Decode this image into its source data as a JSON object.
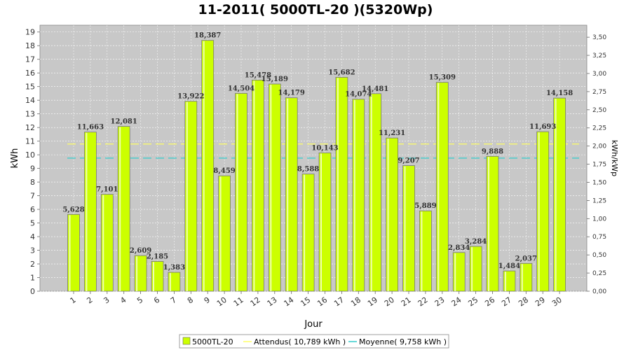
{
  "chart_data": {
    "type": "bar",
    "title": "11-2011( 5000TL-20 )(5320Wp)",
    "xlabel": "Jour",
    "ylabel": "kWh",
    "y2label": "kWh/kWp",
    "ylim": [
      0,
      19.5
    ],
    "y2lim": [
      0,
      3.6654
    ],
    "yticks": [
      0,
      1,
      2,
      3,
      4,
      5,
      6,
      7,
      8,
      9,
      10,
      11,
      12,
      13,
      14,
      15,
      16,
      17,
      18,
      19
    ],
    "y2ticks": [
      "0,00",
      "0,25",
      "0,50",
      "0,75",
      "1,00",
      "1,25",
      "1,50",
      "1,75",
      "2,00",
      "2,25",
      "2,50",
      "2,75",
      "3,00",
      "3,25",
      "3,50"
    ],
    "categories": [
      "1",
      "2",
      "3",
      "4",
      "5",
      "6",
      "7",
      "8",
      "9",
      "10",
      "11",
      "12",
      "13",
      "14",
      "15",
      "16",
      "17",
      "18",
      "19",
      "20",
      "21",
      "22",
      "23",
      "24",
      "25",
      "26",
      "27",
      "28",
      "29",
      "30"
    ],
    "series": [
      {
        "name": "5000TL-20",
        "values": [
          5.628,
          11.663,
          7.101,
          12.081,
          2.609,
          2.185,
          1.383,
          13.922,
          18.387,
          8.459,
          14.504,
          15.478,
          15.189,
          14.179,
          8.588,
          10.143,
          15.682,
          14.074,
          14.481,
          11.231,
          9.207,
          5.889,
          15.309,
          2.834,
          3.284,
          9.888,
          1.484,
          2.037,
          11.693,
          14.158
        ],
        "labels": [
          "5,628",
          "11,663",
          "7,101",
          "12,081",
          "2,609",
          "2,185",
          "1,383",
          "13,922",
          "18,387",
          "8,459",
          "14,504",
          "15,478",
          "15,189",
          "14,179",
          "8,588",
          "10,143",
          "15,682",
          "14,074",
          "14,481",
          "11,231",
          "9,207",
          "5,889",
          "15,309",
          "2,834",
          "3,284",
          "9,888",
          "1,484",
          "2,037",
          "11,693",
          "14,158"
        ],
        "color": "#ccff00"
      }
    ],
    "lines": [
      {
        "name": "Attendus( 10,789 kWh )",
        "value": 10.789,
        "color": "#ffff66"
      },
      {
        "name": "Moyenne( 9,758 kWh )",
        "value": 9.758,
        "color": "#33cccc"
      }
    ],
    "grid": true,
    "legend": "bottom-center"
  }
}
